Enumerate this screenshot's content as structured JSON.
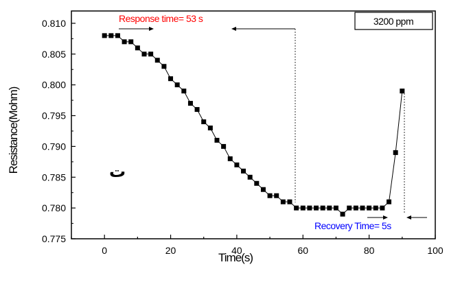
{
  "chart_data": {
    "type": "scatter",
    "xlabel": "Time(s)",
    "ylabel": "Resistance(Mohm)",
    "xlim": [
      -10,
      100
    ],
    "ylim": [
      0.775,
      0.812
    ],
    "x_ticks": [
      "0",
      "20",
      "40",
      "60",
      "80",
      "100"
    ],
    "y_ticks": [
      "0.775",
      "0.780",
      "0.785",
      "0.790",
      "0.795",
      "0.800",
      "0.805",
      "0.810"
    ],
    "grid": false,
    "series": [
      {
        "marker": "square",
        "color": "#000000",
        "x": [
          0,
          2,
          4,
          6,
          8,
          10,
          12,
          14,
          16,
          18,
          20,
          22,
          24,
          26,
          28,
          30,
          32,
          34,
          36,
          38,
          40,
          42,
          44,
          46,
          48,
          50,
          52,
          54,
          56,
          58,
          60,
          62,
          64,
          66,
          68,
          70,
          72,
          74,
          76,
          78,
          80,
          82,
          84,
          86,
          88,
          90
        ],
        "y": [
          0.808,
          0.808,
          0.808,
          0.807,
          0.807,
          0.806,
          0.805,
          0.805,
          0.804,
          0.803,
          0.801,
          0.8,
          0.799,
          0.797,
          0.796,
          0.794,
          0.793,
          0.791,
          0.79,
          0.788,
          0.787,
          0.786,
          0.785,
          0.784,
          0.783,
          0.782,
          0.782,
          0.781,
          0.781,
          0.78,
          0.78,
          0.78,
          0.78,
          0.78,
          0.78,
          0.78,
          0.779,
          0.78,
          0.78,
          0.78,
          0.78,
          0.78,
          0.78,
          0.781,
          0.789,
          0.799
        ]
      }
    ],
    "annotations": {
      "response": {
        "text": "Response time= 53 s",
        "color": "#ff0000"
      },
      "recovery": {
        "text": "Recovery Time= 5s",
        "color": "#0000ff"
      },
      "concentration": {
        "text": "3200 ppm"
      },
      "symbol": {
        "text": "ت"
      }
    }
  }
}
